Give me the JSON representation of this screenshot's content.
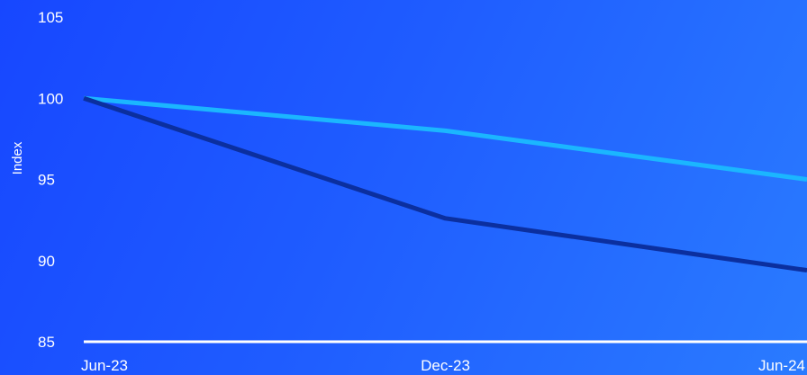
{
  "chart_data": {
    "type": "line",
    "title": "",
    "xlabel": "",
    "ylabel": "Index",
    "x": [
      "Jun-23",
      "Dec-23",
      "Jun-24"
    ],
    "ylim": [
      85,
      105
    ],
    "yticks": [
      105,
      100,
      95,
      90,
      85
    ],
    "grid": false,
    "legend": "none",
    "series": [
      {
        "color": "#1bb6ff",
        "values": [
          100,
          98,
          95
        ]
      },
      {
        "color": "#0b2f9f",
        "values": [
          100,
          92.6,
          89.4
        ]
      }
    ],
    "axis_color": "#ffffff",
    "background_color": "#1f5cff"
  }
}
